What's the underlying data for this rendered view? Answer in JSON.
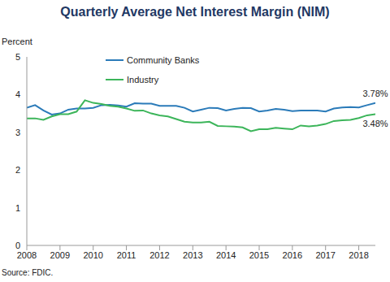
{
  "chart_data": {
    "type": "line",
    "title": "Quarterly Average Net Interest Margin (NIM)",
    "y_label": "Percent",
    "source": "Source: FDIC.",
    "x": [
      2008,
      2008.25,
      2008.5,
      2008.75,
      2009,
      2009.25,
      2009.5,
      2009.75,
      2010,
      2010.25,
      2010.5,
      2010.75,
      2011,
      2011.25,
      2011.5,
      2011.75,
      2012,
      2012.25,
      2012.5,
      2012.75,
      2013,
      2013.25,
      2013.5,
      2013.75,
      2014,
      2014.25,
      2014.5,
      2014.75,
      2015,
      2015.25,
      2015.5,
      2015.75,
      2016,
      2016.25,
      2016.5,
      2016.75,
      2017,
      2017.25,
      2017.5,
      2017.75,
      2018,
      2018.25,
      2018.5
    ],
    "series": [
      {
        "name": "Community Banks",
        "color": "#2b7bb9",
        "values": [
          3.65,
          3.72,
          3.58,
          3.47,
          3.5,
          3.6,
          3.63,
          3.63,
          3.65,
          3.72,
          3.73,
          3.71,
          3.68,
          3.77,
          3.76,
          3.76,
          3.7,
          3.7,
          3.7,
          3.65,
          3.55,
          3.6,
          3.65,
          3.64,
          3.58,
          3.62,
          3.65,
          3.64,
          3.55,
          3.58,
          3.62,
          3.6,
          3.56,
          3.58,
          3.58,
          3.58,
          3.55,
          3.63,
          3.66,
          3.67,
          3.66,
          3.72,
          3.78
        ]
      },
      {
        "name": "Industry",
        "color": "#3cb55a",
        "values": [
          3.37,
          3.37,
          3.33,
          3.42,
          3.48,
          3.48,
          3.55,
          3.85,
          3.78,
          3.75,
          3.7,
          3.68,
          3.63,
          3.57,
          3.58,
          3.5,
          3.45,
          3.42,
          3.35,
          3.28,
          3.26,
          3.26,
          3.28,
          3.17,
          3.16,
          3.15,
          3.13,
          3.03,
          3.08,
          3.08,
          3.12,
          3.1,
          3.08,
          3.18,
          3.16,
          3.18,
          3.22,
          3.3,
          3.32,
          3.33,
          3.38,
          3.45,
          3.48
        ]
      }
    ],
    "annotations": [
      {
        "text": "3.78%",
        "x": 2018.5,
        "y": 3.78
      },
      {
        "text": "3.48%",
        "x": 2018.5,
        "y": 3.48
      }
    ],
    "xlim": [
      2008,
      2018.5
    ],
    "xticks": [
      2008,
      2009,
      2010,
      2011,
      2012,
      2013,
      2014,
      2015,
      2016,
      2017,
      2018
    ],
    "ylim": [
      0,
      5
    ],
    "yticks": [
      0,
      1,
      2,
      3,
      4,
      5
    ],
    "grid": false,
    "legend": "upper left"
  }
}
